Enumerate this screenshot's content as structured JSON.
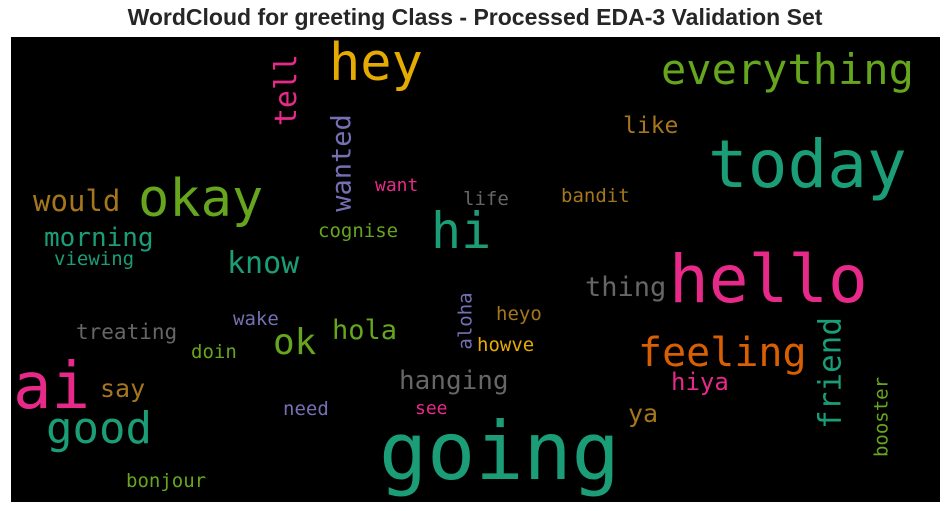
{
  "title": "WordCloud for greeting Class - Processed EDA-3 Validation Set",
  "colors": {
    "background": "#000000",
    "teal": "#1b9e77",
    "orange": "#d95f02",
    "purple": "#7570b3",
    "magenta": "#e7298a",
    "green": "#66a61e",
    "yellow": "#e6ab02",
    "brown": "#a6761d",
    "gray": "#666666"
  },
  "words": [
    {
      "text": "going",
      "color": "#1b9e77"
    },
    {
      "text": "hello",
      "color": "#e7298a"
    },
    {
      "text": "today",
      "color": "#1b9e77"
    },
    {
      "text": "ai",
      "color": "#e7298a"
    },
    {
      "text": "hey",
      "color": "#e6ab02"
    },
    {
      "text": "okay",
      "color": "#66a61e"
    },
    {
      "text": "everything",
      "color": "#66a61e"
    },
    {
      "text": "hi",
      "color": "#1b9e77"
    },
    {
      "text": "good",
      "color": "#1b9e77"
    },
    {
      "text": "feeling",
      "color": "#d95f02"
    },
    {
      "text": "tell",
      "color": "#e7298a"
    },
    {
      "text": "wanted",
      "color": "#7570b3"
    },
    {
      "text": "know",
      "color": "#1b9e77"
    },
    {
      "text": "ok",
      "color": "#66a61e"
    },
    {
      "text": "friend",
      "color": "#1b9e77"
    },
    {
      "text": "hanging",
      "color": "#666666"
    },
    {
      "text": "hola",
      "color": "#66a61e"
    },
    {
      "text": "would",
      "color": "#a6761d"
    },
    {
      "text": "morning",
      "color": "#1b9e77"
    },
    {
      "text": "thing",
      "color": "#666666"
    },
    {
      "text": "hiya",
      "color": "#e7298a"
    },
    {
      "text": "like",
      "color": "#a6761d"
    },
    {
      "text": "say",
      "color": "#a6761d"
    },
    {
      "text": "ya",
      "color": "#a6761d"
    },
    {
      "text": "treating",
      "color": "#666666"
    },
    {
      "text": "bandit",
      "color": "#a6761d"
    },
    {
      "text": "life",
      "color": "#666666"
    },
    {
      "text": "want",
      "color": "#e7298a"
    },
    {
      "text": "cognise",
      "color": "#66a61e"
    },
    {
      "text": "viewing",
      "color": "#1b9e77"
    },
    {
      "text": "aloha",
      "color": "#7570b3"
    },
    {
      "text": "heyo",
      "color": "#a6761d"
    },
    {
      "text": "howve",
      "color": "#e6ab02"
    },
    {
      "text": "wake",
      "color": "#7570b3"
    },
    {
      "text": "doin",
      "color": "#66a61e"
    },
    {
      "text": "need",
      "color": "#7570b3"
    },
    {
      "text": "see",
      "color": "#e7298a"
    },
    {
      "text": "booster",
      "color": "#66a61e"
    },
    {
      "text": "bonjour",
      "color": "#66a61e"
    }
  ]
}
